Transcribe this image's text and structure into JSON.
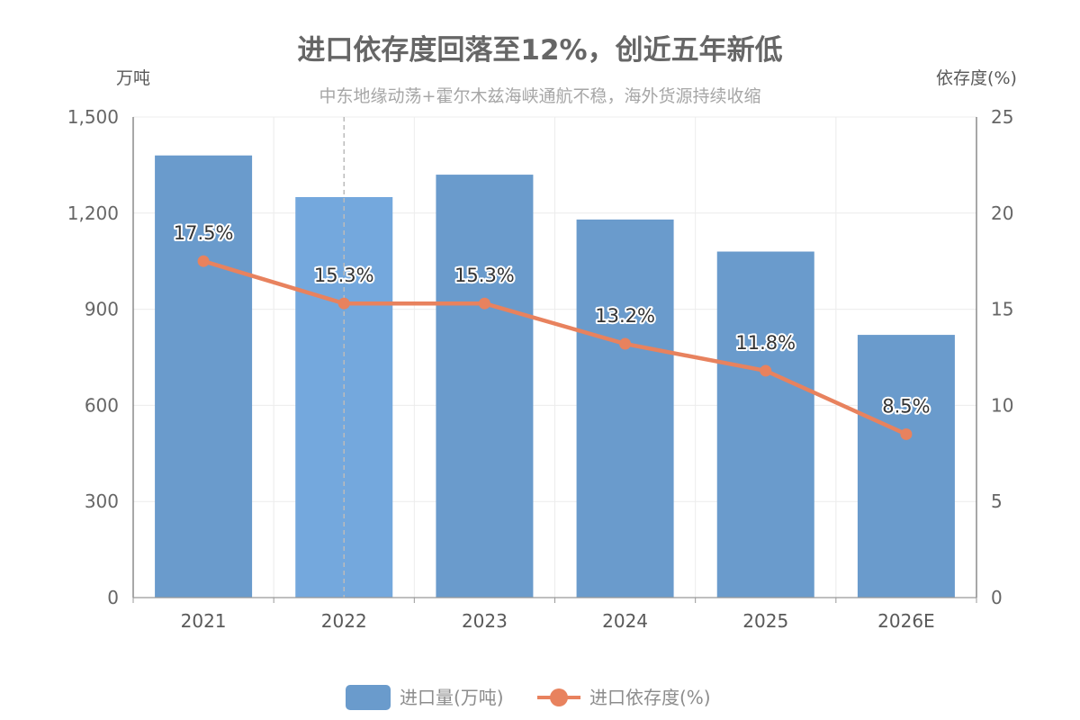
{
  "chart_data": {
    "type": "bar",
    "title": "进口依存度回落至12%，创近五年新低",
    "subtitle": "中东地缘动荡+霍尔木兹海峡通航不稳，海外货源持续收缩",
    "categories": [
      "2021",
      "2022",
      "2023",
      "2024",
      "2025",
      "2026E"
    ],
    "ylabel": "万吨",
    "ylabel_right": "依存度(%)",
    "ylim": [
      0,
      1500
    ],
    "ylim_right": [
      0,
      25
    ],
    "yticks": [
      0,
      300,
      600,
      900,
      1200,
      1500
    ],
    "yticks_right": [
      0,
      5,
      10,
      15,
      20,
      25
    ],
    "grid": true,
    "legend": "bottom-center",
    "highlighted_category": "2022",
    "series": [
      {
        "name": "进口量(万吨)",
        "type": "bar",
        "axis": "left",
        "color": "#6a9bcc",
        "highlight_color": "#74a8dd",
        "values": [
          1380,
          1250,
          1320,
          1180,
          1080,
          820
        ]
      },
      {
        "name": "进口依存度(%)",
        "type": "line",
        "axis": "right",
        "color": "#e8825e",
        "values": [
          17.5,
          15.3,
          15.3,
          13.2,
          11.8,
          8.5
        ],
        "labels": [
          "17.5%",
          "15.3%",
          "15.3%",
          "13.2%",
          "11.8%",
          "8.5%"
        ]
      }
    ]
  }
}
